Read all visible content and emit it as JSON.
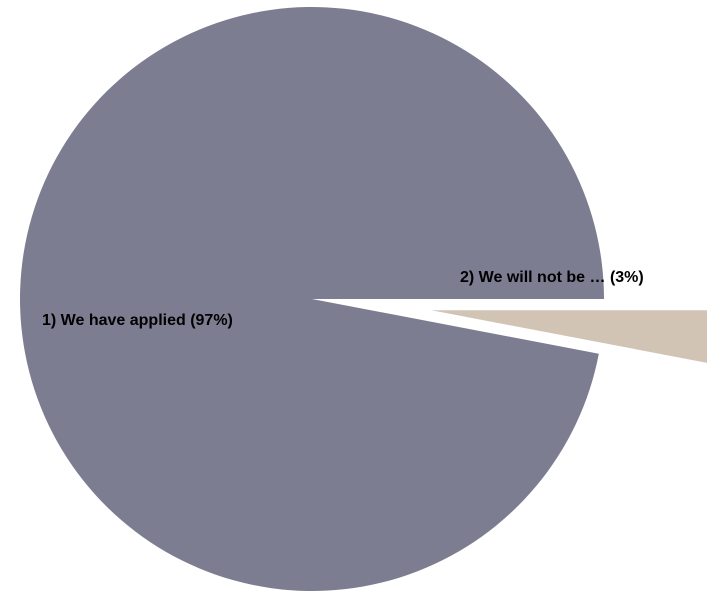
{
  "chart_data": {
    "type": "pie",
    "title": "",
    "slices": [
      {
        "label": "1) We have applied (97%)",
        "value": 97,
        "color": "#7d7d92"
      },
      {
        "label": "2) We will not be … (3%)",
        "value": 3,
        "color": "#d2c4b4"
      }
    ],
    "legend": "none"
  }
}
